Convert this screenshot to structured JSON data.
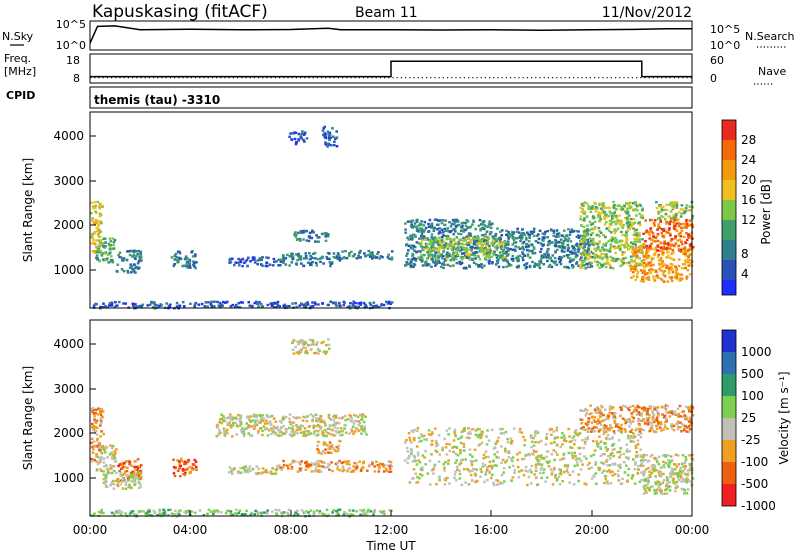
{
  "header": {
    "station": "Kapuskasing (fitACF)",
    "beam": "Beam 11",
    "date": "11/Nov/2012"
  },
  "colors": {
    "power": [
      "#1f2dff",
      "#2852b8",
      "#2f7f8f",
      "#3fa06a",
      "#7cc84a",
      "#f0c020",
      "#f59a10",
      "#f26a0a",
      "#ea2a1c"
    ],
    "velocity": [
      "#ee2020",
      "#ee6010",
      "#f0a020",
      "#c0c0b8",
      "#7cd050",
      "#2f9a6a",
      "#2f70b0",
      "#2030d0"
    ]
  },
  "chart_data": [
    {
      "id": "sky-search",
      "type": "line",
      "left_label": "N.Sky",
      "right_label": "N.Search",
      "left_ticks": [
        "10^5",
        "10^0"
      ],
      "right_ticks": [
        "10^5",
        "10^0"
      ],
      "x": [
        0,
        0.3,
        1,
        2,
        4,
        6,
        8,
        9.5,
        10,
        12,
        14,
        16,
        18,
        20,
        22,
        23,
        24
      ],
      "series": [
        {
          "values": [
            1.0,
            4.5,
            4.6,
            3.8,
            3.9,
            3.8,
            3.85,
            4.1,
            3.8,
            3.8,
            3.75,
            3.8,
            3.7,
            3.8,
            3.9,
            4.0,
            4.0
          ]
        }
      ]
    },
    {
      "id": "freq-nave",
      "type": "line",
      "left_label_lines": [
        "Freq.",
        "[MHz]"
      ],
      "right_label": "Nave",
      "left_ticks": [
        "18",
        "8"
      ],
      "right_ticks": [
        "60",
        "0"
      ],
      "series": [
        {
          "x": [
            0,
            12,
            12,
            22,
            22,
            24
          ],
          "values": [
            10,
            10,
            17,
            17,
            10,
            10
          ]
        },
        {
          "x": [
            0,
            24
          ],
          "values": [
            9.5,
            9.5
          ]
        }
      ]
    },
    {
      "id": "cpid",
      "type": "table",
      "label": "CPID",
      "text": "themis (tau) -3310"
    },
    {
      "id": "power",
      "type": "heatmap",
      "ylabel": "Slant Range [km]",
      "y_ticks": [
        "4000",
        "3000",
        "2000",
        "1000"
      ],
      "ylim": [
        180,
        4600
      ],
      "colorbar_label": "Power [dB]",
      "colorbar_ticks": [
        "28",
        "24",
        "20",
        "16",
        "12",
        "8",
        "4"
      ],
      "regions": [
        {
          "x": [
            0.0,
            0.45
          ],
          "y": [
            1400,
            2600
          ],
          "v": 5
        },
        {
          "x": [
            0.2,
            1.0
          ],
          "y": [
            1200,
            1800
          ],
          "v": 3
        },
        {
          "x": [
            1.0,
            2.0
          ],
          "y": [
            1000,
            1500
          ],
          "v": 2
        },
        {
          "x": [
            3.2,
            4.2
          ],
          "y": [
            1100,
            1500
          ],
          "v": 2
        },
        {
          "x": [
            5.5,
            7.5
          ],
          "y": [
            1150,
            1350
          ],
          "v": 1
        },
        {
          "x": [
            7.5,
            10.0
          ],
          "y": [
            1150,
            1450
          ],
          "v": 2
        },
        {
          "x": [
            10.0,
            12.0
          ],
          "y": [
            1300,
            1500
          ],
          "v": 2
        },
        {
          "x": [
            8.0,
            9.5
          ],
          "y": [
            1700,
            1950
          ],
          "v": 2
        },
        {
          "x": [
            9.2,
            9.8
          ],
          "y": [
            3850,
            4300
          ],
          "v": 1
        },
        {
          "x": [
            7.9,
            8.6
          ],
          "y": [
            3900,
            4200
          ],
          "v": 1
        },
        {
          "x": [
            12.5,
            16.0
          ],
          "y": [
            1100,
            2200
          ],
          "v": 2
        },
        {
          "x": [
            16.0,
            20.0
          ],
          "y": [
            1100,
            2000
          ],
          "v": 2
        },
        {
          "x": [
            13.0,
            16.5
          ],
          "y": [
            1300,
            1800
          ],
          "v": 4
        },
        {
          "x": [
            19.5,
            22.0
          ],
          "y": [
            1100,
            2600
          ],
          "v": 4
        },
        {
          "x": [
            21.5,
            24.0
          ],
          "y": [
            800,
            1600
          ],
          "v": 6
        },
        {
          "x": [
            22.0,
            24.0
          ],
          "y": [
            1500,
            2200
          ],
          "v": 7
        },
        {
          "x": [
            22.5,
            24.0
          ],
          "y": [
            2200,
            2600
          ],
          "v": 4
        },
        {
          "x": [
            0.0,
            12.0
          ],
          "y": [
            200,
            350
          ],
          "v": 1
        }
      ]
    },
    {
      "id": "velocity",
      "type": "heatmap",
      "ylabel": "Slant Range [km]",
      "y_ticks": [
        "4000",
        "3000",
        "2000",
        "1000"
      ],
      "ylim": [
        180,
        4600
      ],
      "xlabel": "Time UT",
      "x_ticks": [
        "00:00",
        "04:00",
        "08:00",
        "12:00",
        "16:00",
        "20:00",
        "00:00"
      ],
      "xlim": [
        0,
        24
      ],
      "colorbar_label": "Velocity [m s⁻¹]",
      "colorbar_ticks": [
        "1000",
        "500",
        "100",
        "25",
        "-25",
        "-100",
        "-500",
        "-1000"
      ],
      "regions": [
        {
          "x": [
            0.0,
            0.5
          ],
          "y": [
            1400,
            2700
          ],
          "v": 2
        },
        {
          "x": [
            0.2,
            1.0
          ],
          "y": [
            1200,
            1800
          ],
          "v": 3
        },
        {
          "x": [
            1.0,
            2.0
          ],
          "y": [
            1000,
            1500
          ],
          "v": 1
        },
        {
          "x": [
            3.2,
            4.2
          ],
          "y": [
            1100,
            1500
          ],
          "v": 1
        },
        {
          "x": [
            5.5,
            7.5
          ],
          "y": [
            1150,
            1350
          ],
          "v": 3
        },
        {
          "x": [
            7.5,
            12.0
          ],
          "y": [
            1200,
            1450
          ],
          "v": 2
        },
        {
          "x": [
            9.0,
            10.0
          ],
          "y": [
            1600,
            1900
          ],
          "v": 2
        },
        {
          "x": [
            0.5,
            2.0
          ],
          "y": [
            800,
            1200
          ],
          "v": 3
        },
        {
          "x": [
            12.5,
            22.0
          ],
          "y": [
            900,
            2200
          ],
          "v": 3
        },
        {
          "x": [
            19.5,
            24.0
          ],
          "y": [
            2100,
            2700
          ],
          "v": 2
        },
        {
          "x": [
            22.0,
            24.0
          ],
          "y": [
            700,
            1600
          ],
          "v": 3
        },
        {
          "x": [
            5.0,
            11.0
          ],
          "y": [
            2000,
            2500
          ],
          "v": 3
        },
        {
          "x": [
            8.0,
            9.5
          ],
          "y": [
            3850,
            4200
          ],
          "v": 3
        },
        {
          "x": [
            0.0,
            12.0
          ],
          "y": [
            200,
            350
          ],
          "v": 4
        }
      ]
    }
  ]
}
